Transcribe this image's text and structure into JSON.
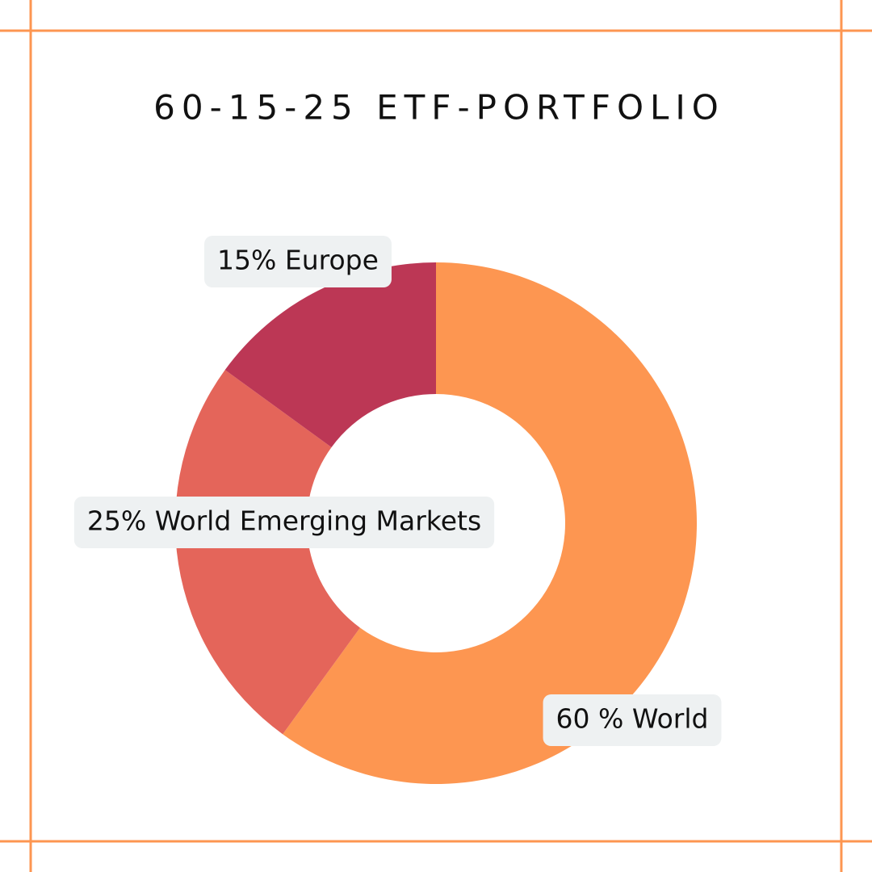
{
  "chart_data": {
    "type": "pie",
    "title": "60-15-25 ETF-PORTFOLIO",
    "values": [
      60,
      25,
      15
    ],
    "value_labels": [
      "60 % World",
      "25% World Emerging Markets",
      "15% Europe"
    ],
    "colors": [
      "#FD9651",
      "#E4655A",
      "#BC3755"
    ]
  }
}
